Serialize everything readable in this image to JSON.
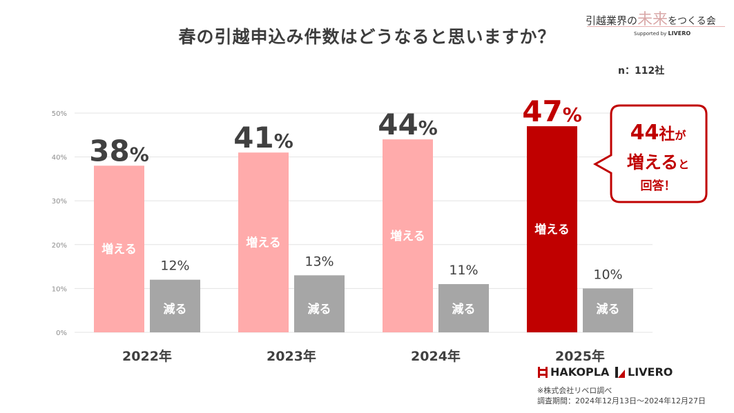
{
  "header": {
    "title": "春の引越申込み件数はどうなると思いますか？",
    "sample_size": "n：112社"
  },
  "logo_top": {
    "part1": "引越業界の",
    "part2": "未来",
    "part3": "をつくる会",
    "supported_prefix": "Supported by",
    "supported_brand": "LIVERO"
  },
  "chart_data": {
    "type": "bar",
    "title": "春の引越申込み件数はどうなると思いますか？",
    "categories": [
      "2022年",
      "2023年",
      "2024年",
      "2025年"
    ],
    "series": [
      {
        "name": "増える",
        "values": [
          38,
          41,
          44,
          47
        ]
      },
      {
        "name": "減る",
        "values": [
          12,
          13,
          11,
          10
        ]
      }
    ],
    "big_value_labels": [
      "38",
      "41",
      "44",
      "47"
    ],
    "percent_suffix": "%",
    "small_value_labels": [
      "12%",
      "13%",
      "11%",
      "10%"
    ],
    "y_ticks": [
      "0%",
      "10%",
      "20%",
      "30%",
      "40%",
      "50%"
    ],
    "ylim": [
      0,
      50
    ],
    "grid": true,
    "colors": {
      "increase": "#ffabab",
      "increase_highlight": "#c00000",
      "decrease": "#a6a6a6",
      "big_label": "#404040",
      "highlight_label": "#c00000"
    }
  },
  "callout": {
    "line1_num": "44",
    "line1_unit": "社",
    "line1_particle": "が",
    "line2_main": "増える",
    "line2_particle": "と",
    "line3": "回答！"
  },
  "footer": {
    "brand1": "HAKOPLA",
    "brand2": "LIVERO",
    "note_source": "※株式会社リベロ調べ",
    "note_period": "調査期間：2024年12月13日～2024年12月27日"
  }
}
